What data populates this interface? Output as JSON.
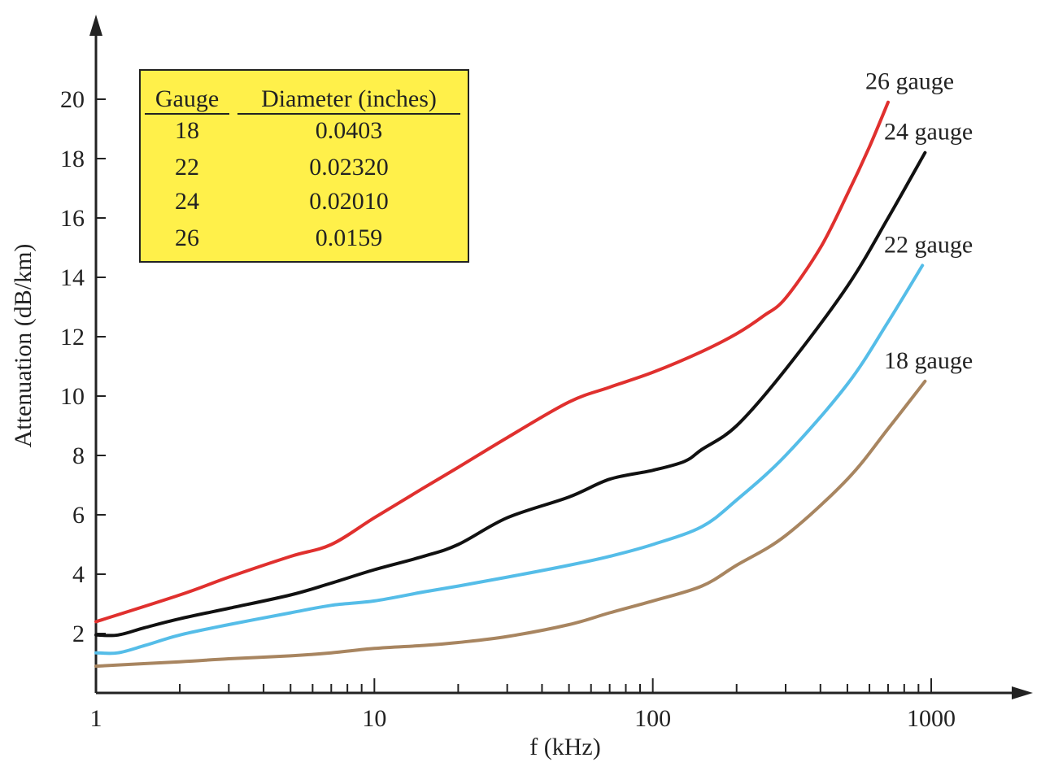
{
  "chart_data": {
    "type": "line",
    "title": "",
    "xlabel": "f (kHz)",
    "ylabel": "Attenuation (dB/km)",
    "x_scale": "log",
    "xlim": [
      1,
      1000
    ],
    "ylim": [
      0,
      20
    ],
    "x_ticks": [
      1,
      10,
      100,
      1000
    ],
    "y_ticks": [
      2,
      4,
      6,
      8,
      10,
      12,
      14,
      16,
      18,
      20
    ],
    "grid": false,
    "legend": "none",
    "series": [
      {
        "name": "26 gauge",
        "color": "#e0302e",
        "points": [
          [
            1,
            2.4
          ],
          [
            2,
            3.3
          ],
          [
            3,
            3.9
          ],
          [
            5,
            4.6
          ],
          [
            7,
            5.0
          ],
          [
            10,
            5.9
          ],
          [
            15,
            6.9
          ],
          [
            20,
            7.6
          ],
          [
            30,
            8.6
          ],
          [
            50,
            9.8
          ],
          [
            70,
            10.3
          ],
          [
            100,
            10.8
          ],
          [
            150,
            11.5
          ],
          [
            200,
            12.1
          ],
          [
            250,
            12.7
          ],
          [
            300,
            13.3
          ],
          [
            400,
            15.0
          ],
          [
            500,
            16.8
          ],
          [
            600,
            18.4
          ],
          [
            700,
            19.9
          ]
        ]
      },
      {
        "name": "24 gauge",
        "color": "#111111",
        "points": [
          [
            1,
            1.95
          ],
          [
            1.2,
            1.95
          ],
          [
            1.5,
            2.2
          ],
          [
            2,
            2.5
          ],
          [
            3,
            2.85
          ],
          [
            5,
            3.3
          ],
          [
            7,
            3.7
          ],
          [
            10,
            4.15
          ],
          [
            15,
            4.6
          ],
          [
            20,
            5.0
          ],
          [
            30,
            5.9
          ],
          [
            50,
            6.6
          ],
          [
            70,
            7.2
          ],
          [
            100,
            7.5
          ],
          [
            130,
            7.8
          ],
          [
            150,
            8.2
          ],
          [
            200,
            9.0
          ],
          [
            300,
            10.9
          ],
          [
            500,
            13.7
          ],
          [
            700,
            16.0
          ],
          [
            950,
            18.2
          ]
        ]
      },
      {
        "name": "22 gauge",
        "color": "#55bde8",
        "points": [
          [
            1,
            1.35
          ],
          [
            1.2,
            1.35
          ],
          [
            1.5,
            1.6
          ],
          [
            2,
            1.95
          ],
          [
            3,
            2.3
          ],
          [
            5,
            2.7
          ],
          [
            7,
            2.95
          ],
          [
            10,
            3.1
          ],
          [
            15,
            3.4
          ],
          [
            20,
            3.6
          ],
          [
            30,
            3.9
          ],
          [
            50,
            4.3
          ],
          [
            70,
            4.6
          ],
          [
            100,
            5.0
          ],
          [
            150,
            5.6
          ],
          [
            200,
            6.5
          ],
          [
            300,
            8.0
          ],
          [
            500,
            10.4
          ],
          [
            700,
            12.5
          ],
          [
            930,
            14.4
          ]
        ]
      },
      {
        "name": "18 gauge",
        "color": "#a88560",
        "points": [
          [
            1,
            0.9
          ],
          [
            2,
            1.05
          ],
          [
            3,
            1.15
          ],
          [
            5,
            1.25
          ],
          [
            7,
            1.35
          ],
          [
            10,
            1.5
          ],
          [
            15,
            1.6
          ],
          [
            20,
            1.7
          ],
          [
            30,
            1.9
          ],
          [
            50,
            2.3
          ],
          [
            70,
            2.7
          ],
          [
            100,
            3.1
          ],
          [
            150,
            3.6
          ],
          [
            200,
            4.3
          ],
          [
            300,
            5.3
          ],
          [
            500,
            7.2
          ],
          [
            700,
            8.9
          ],
          [
            950,
            10.5
          ]
        ]
      }
    ],
    "table": {
      "headers": [
        "Gauge",
        "Diameter (inches)"
      ],
      "rows": [
        [
          "18",
          "0.0403"
        ],
        [
          "22",
          "0.02320"
        ],
        [
          "24",
          "0.02010"
        ],
        [
          "26",
          "0.0159"
        ]
      ],
      "background": "#fff04a"
    }
  }
}
